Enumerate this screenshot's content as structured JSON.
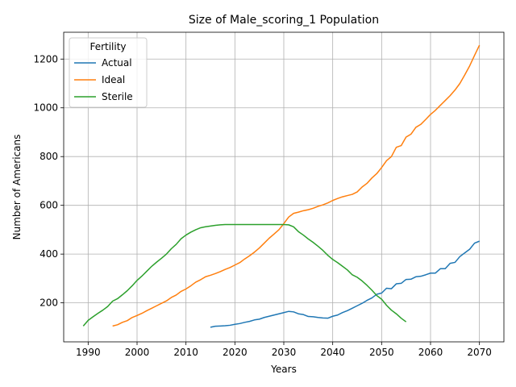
{
  "chart_data": {
    "type": "line",
    "title": "Size of Male_scoring_1 Population",
    "xlabel": "Years",
    "ylabel": "Number of Americans",
    "xlim": [
      1985,
      2075
    ],
    "ylim": [
      40,
      1310
    ],
    "xticks": [
      1990,
      2000,
      2010,
      2020,
      2030,
      2040,
      2050,
      2060,
      2070
    ],
    "yticks": [
      200,
      400,
      600,
      800,
      1000,
      1200
    ],
    "grid": true,
    "legend": {
      "title": "Fertility",
      "placement": "top-left"
    },
    "series": [
      {
        "name": "Actual",
        "color": "#1f77b4",
        "points": [
          [
            2015,
            100
          ],
          [
            2016,
            104
          ],
          [
            2017,
            105
          ],
          [
            2018,
            106
          ],
          [
            2019,
            108
          ],
          [
            2020,
            112
          ],
          [
            2021,
            115
          ],
          [
            2022,
            120
          ],
          [
            2023,
            124
          ],
          [
            2024,
            130
          ],
          [
            2025,
            133
          ],
          [
            2026,
            140
          ],
          [
            2027,
            145
          ],
          [
            2028,
            150
          ],
          [
            2029,
            155
          ],
          [
            2030,
            160
          ],
          [
            2031,
            165
          ],
          [
            2032,
            163
          ],
          [
            2033,
            155
          ],
          [
            2034,
            152
          ],
          [
            2035,
            144
          ],
          [
            2036,
            143
          ],
          [
            2037,
            140
          ],
          [
            2038,
            138
          ],
          [
            2039,
            137
          ],
          [
            2040,
            145
          ],
          [
            2041,
            150
          ],
          [
            2042,
            160
          ],
          [
            2043,
            168
          ],
          [
            2044,
            178
          ],
          [
            2045,
            188
          ],
          [
            2046,
            198
          ],
          [
            2047,
            210
          ],
          [
            2048,
            220
          ],
          [
            2049,
            235
          ],
          [
            2050,
            240
          ],
          [
            2051,
            260
          ],
          [
            2052,
            258
          ],
          [
            2053,
            278
          ],
          [
            2054,
            280
          ],
          [
            2055,
            296
          ],
          [
            2056,
            297
          ],
          [
            2057,
            307
          ],
          [
            2058,
            309
          ],
          [
            2059,
            315
          ],
          [
            2060,
            322
          ],
          [
            2061,
            322
          ],
          [
            2062,
            340
          ],
          [
            2063,
            340
          ],
          [
            2064,
            362
          ],
          [
            2065,
            366
          ],
          [
            2066,
            390
          ],
          [
            2067,
            405
          ],
          [
            2068,
            420
          ],
          [
            2069,
            445
          ],
          [
            2070,
            453
          ]
        ]
      },
      {
        "name": "Ideal",
        "color": "#ff7f0e",
        "points": [
          [
            1995,
            105
          ],
          [
            1996,
            110
          ],
          [
            1997,
            120
          ],
          [
            1998,
            127
          ],
          [
            1999,
            140
          ],
          [
            2000,
            148
          ],
          [
            2001,
            157
          ],
          [
            2002,
            168
          ],
          [
            2003,
            178
          ],
          [
            2004,
            188
          ],
          [
            2005,
            198
          ],
          [
            2006,
            208
          ],
          [
            2007,
            222
          ],
          [
            2008,
            232
          ],
          [
            2009,
            247
          ],
          [
            2010,
            257
          ],
          [
            2011,
            270
          ],
          [
            2012,
            285
          ],
          [
            2013,
            295
          ],
          [
            2014,
            307
          ],
          [
            2015,
            313
          ],
          [
            2016,
            320
          ],
          [
            2017,
            328
          ],
          [
            2018,
            337
          ],
          [
            2019,
            345
          ],
          [
            2020,
            355
          ],
          [
            2021,
            365
          ],
          [
            2022,
            380
          ],
          [
            2023,
            393
          ],
          [
            2024,
            408
          ],
          [
            2025,
            425
          ],
          [
            2026,
            445
          ],
          [
            2027,
            465
          ],
          [
            2028,
            482
          ],
          [
            2029,
            500
          ],
          [
            2030,
            525
          ],
          [
            2031,
            552
          ],
          [
            2032,
            567
          ],
          [
            2033,
            572
          ],
          [
            2034,
            578
          ],
          [
            2035,
            582
          ],
          [
            2036,
            588
          ],
          [
            2037,
            596
          ],
          [
            2038,
            602
          ],
          [
            2039,
            610
          ],
          [
            2040,
            620
          ],
          [
            2041,
            628
          ],
          [
            2042,
            635
          ],
          [
            2043,
            640
          ],
          [
            2044,
            645
          ],
          [
            2045,
            655
          ],
          [
            2046,
            675
          ],
          [
            2047,
            690
          ],
          [
            2048,
            712
          ],
          [
            2049,
            730
          ],
          [
            2050,
            755
          ],
          [
            2051,
            783
          ],
          [
            2052,
            800
          ],
          [
            2053,
            838
          ],
          [
            2054,
            845
          ],
          [
            2055,
            880
          ],
          [
            2056,
            892
          ],
          [
            2057,
            920
          ],
          [
            2058,
            932
          ],
          [
            2059,
            952
          ],
          [
            2060,
            973
          ],
          [
            2061,
            990
          ],
          [
            2062,
            1010
          ],
          [
            2063,
            1030
          ],
          [
            2064,
            1050
          ],
          [
            2065,
            1073
          ],
          [
            2066,
            1100
          ],
          [
            2067,
            1135
          ],
          [
            2068,
            1172
          ],
          [
            2069,
            1215
          ],
          [
            2070,
            1257
          ]
        ]
      },
      {
        "name": "Sterile",
        "color": "#2ca02c",
        "points": [
          [
            1989,
            105
          ],
          [
            1990,
            128
          ],
          [
            1991,
            143
          ],
          [
            1992,
            157
          ],
          [
            1993,
            170
          ],
          [
            1994,
            185
          ],
          [
            1995,
            207
          ],
          [
            1996,
            217
          ],
          [
            1997,
            233
          ],
          [
            1998,
            250
          ],
          [
            1999,
            270
          ],
          [
            2000,
            292
          ],
          [
            2001,
            310
          ],
          [
            2002,
            330
          ],
          [
            2003,
            350
          ],
          [
            2004,
            367
          ],
          [
            2005,
            383
          ],
          [
            2006,
            400
          ],
          [
            2007,
            422
          ],
          [
            2008,
            440
          ],
          [
            2009,
            463
          ],
          [
            2010,
            478
          ],
          [
            2011,
            490
          ],
          [
            2012,
            500
          ],
          [
            2013,
            508
          ],
          [
            2014,
            512
          ],
          [
            2015,
            515
          ],
          [
            2016,
            518
          ],
          [
            2017,
            520
          ],
          [
            2018,
            521
          ],
          [
            2019,
            521
          ],
          [
            2020,
            521
          ],
          [
            2021,
            521
          ],
          [
            2022,
            521
          ],
          [
            2023,
            521
          ],
          [
            2024,
            521
          ],
          [
            2025,
            521
          ],
          [
            2026,
            521
          ],
          [
            2027,
            521
          ],
          [
            2028,
            521
          ],
          [
            2029,
            521
          ],
          [
            2030,
            521
          ],
          [
            2031,
            520
          ],
          [
            2032,
            512
          ],
          [
            2033,
            492
          ],
          [
            2034,
            478
          ],
          [
            2035,
            462
          ],
          [
            2036,
            448
          ],
          [
            2037,
            432
          ],
          [
            2038,
            415
          ],
          [
            2039,
            395
          ],
          [
            2040,
            378
          ],
          [
            2041,
            365
          ],
          [
            2042,
            350
          ],
          [
            2043,
            335
          ],
          [
            2044,
            315
          ],
          [
            2045,
            305
          ],
          [
            2046,
            290
          ],
          [
            2047,
            272
          ],
          [
            2048,
            252
          ],
          [
            2049,
            230
          ],
          [
            2050,
            215
          ],
          [
            2051,
            190
          ],
          [
            2052,
            170
          ],
          [
            2053,
            155
          ],
          [
            2054,
            137
          ],
          [
            2055,
            122
          ]
        ]
      }
    ]
  }
}
